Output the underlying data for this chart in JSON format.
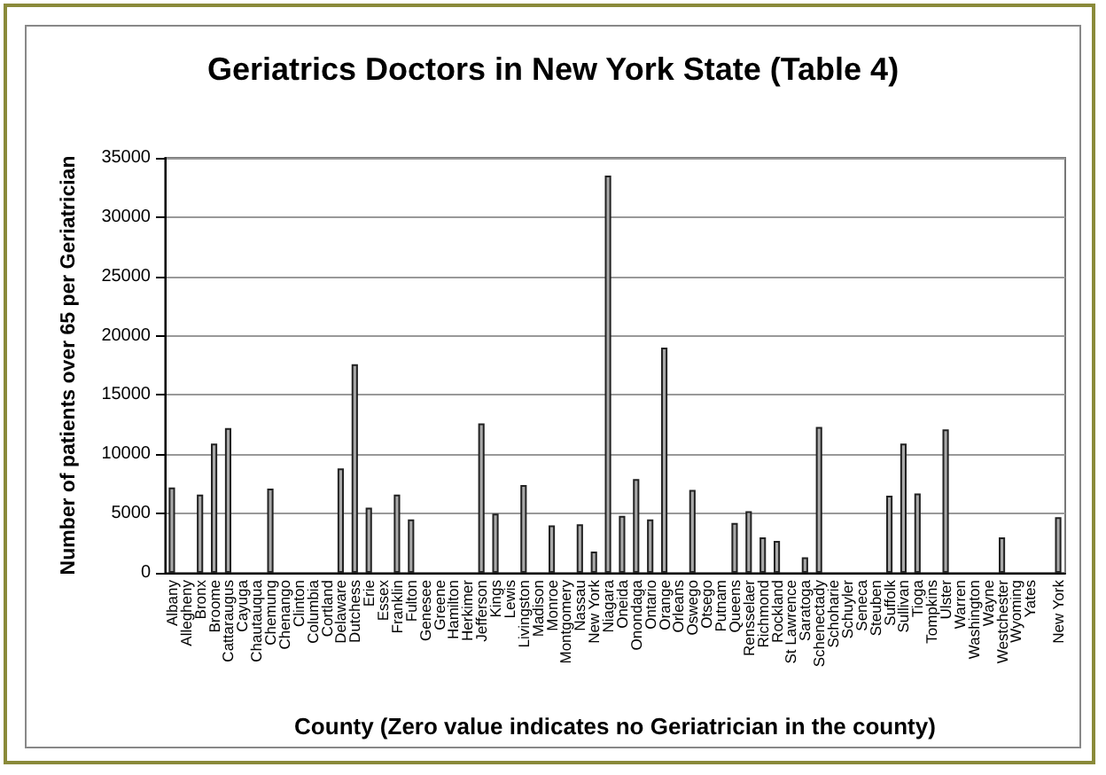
{
  "chart_data": {
    "type": "bar",
    "title": "Geriatrics Doctors in New York State (Table 4)",
    "xlabel": "County (Zero value indicates no Geriatrician in the county)",
    "ylabel": "Number of patients over 65 per Geriatrician",
    "categories": [
      "Albany",
      "Allegheny",
      "Bronx",
      "Broome",
      "Cattaraugus",
      "Cayuga",
      "Chautauqua",
      "Chemung",
      "Chenango",
      "Clinton",
      "Columbia",
      "Cortland",
      "Delaware",
      "Dutchess",
      "Erie",
      "Essex",
      "Franklin",
      "Fulton",
      "Genesee",
      "Greene",
      "Hamilton",
      "Herkimer",
      "Jefferson",
      "Kings",
      "Lewis",
      "Livingston",
      "Madison",
      "Monroe",
      "Montgomery",
      "Nassau",
      "New York",
      "Niagara",
      "Oneida",
      "Onondaga",
      "Ontario",
      "Orange",
      "Orleans",
      "Oswego",
      "Otsego",
      "Putnam",
      "Queens",
      "Rensselaer",
      "Richmond",
      "Rockland",
      "St Lawrence",
      "Saratoga",
      "Schenectady",
      "Schoharie",
      "Schuyler",
      "Seneca",
      "Steuben",
      "Suffolk",
      "Sullivan",
      "Tioga",
      "Tompkins",
      "Ulster",
      "Warren",
      "Washington",
      "Wayne",
      "Westchester",
      "Wyoming",
      "Yates",
      null,
      "New York"
    ],
    "values": [
      7200,
      0,
      6600,
      10900,
      12200,
      0,
      0,
      7100,
      0,
      0,
      0,
      0,
      8800,
      17600,
      5500,
      0,
      6600,
      4500,
      0,
      0,
      0,
      0,
      12600,
      5000,
      0,
      7400,
      0,
      4000,
      0,
      4100,
      1800,
      33500,
      4800,
      7900,
      4500,
      19000,
      0,
      7000,
      0,
      0,
      4200,
      5200,
      3000,
      2700,
      0,
      1300,
      12300,
      0,
      0,
      0,
      0,
      6500,
      10900,
      6700,
      0,
      12100,
      0,
      0,
      0,
      3000,
      0,
      0,
      null,
      4700
    ],
    "color": "#a8a8a8",
    "ylim": [
      0,
      35000
    ],
    "yticks": [
      0,
      5000,
      10000,
      15000,
      20000,
      25000,
      30000,
      35000
    ],
    "grid": "y"
  }
}
